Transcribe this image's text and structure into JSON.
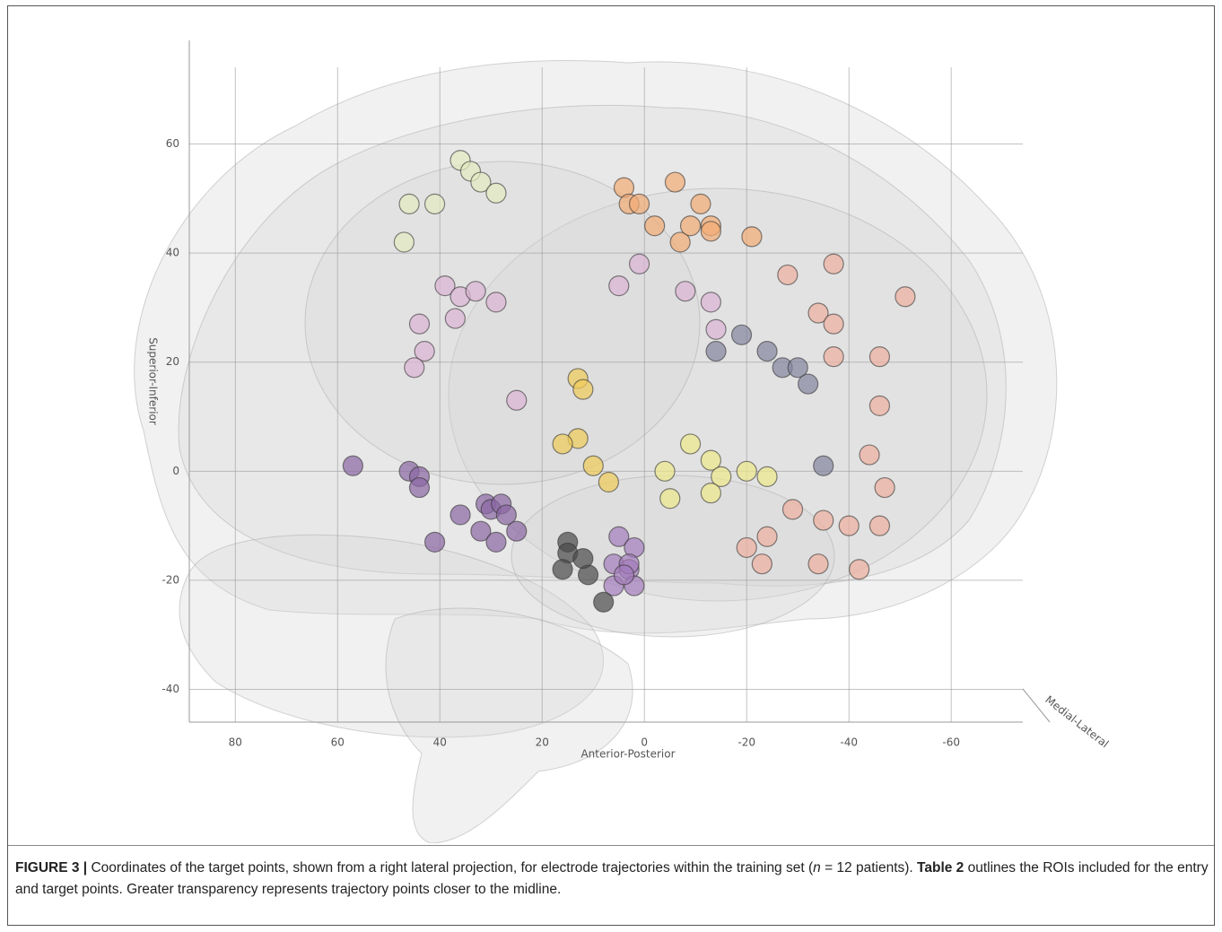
{
  "chart_data": {
    "type": "scatter",
    "xlabel": "Anterior-Posterior",
    "ylabel": "Superior-Inferior",
    "zlabel": "Medial-Lateral",
    "xlim": [
      89,
      -74
    ],
    "xticks": [
      80,
      60,
      40,
      20,
      0,
      -20,
      -40,
      -60
    ],
    "ylim": [
      -46,
      79
    ],
    "yticks": [
      60,
      40,
      20,
      0,
      -20,
      -40
    ],
    "grid": true,
    "series": [
      {
        "color": "#e4ebc0",
        "x": [
          36,
          34,
          32,
          29,
          46,
          41,
          47
        ],
        "y": [
          57,
          55,
          53,
          51,
          49,
          49,
          42
        ]
      },
      {
        "color": "#f2ab74",
        "x": [
          4,
          3,
          1,
          -6,
          -2,
          -7,
          -9,
          -11,
          -13,
          -13,
          -21
        ],
        "y": [
          52,
          49,
          49,
          53,
          45,
          42,
          45,
          49,
          45,
          44,
          43
        ]
      },
      {
        "color": "#eeaf9e",
        "x": [
          -28,
          -37,
          -51,
          -34,
          -37,
          -37,
          -46,
          -46,
          -44,
          -47,
          -46,
          -35,
          -40,
          -29,
          -34,
          -42,
          -24,
          -23,
          -20
        ],
        "y": [
          36,
          38,
          32,
          29,
          27,
          21,
          21,
          12,
          3,
          -3,
          -10,
          -9,
          -10,
          -7,
          -17,
          -18,
          -12,
          -17,
          -14
        ]
      },
      {
        "color": "#dcb4d4",
        "x": [
          1,
          5,
          -8,
          -13,
          -14,
          39,
          36,
          33,
          29,
          37,
          44,
          43,
          45,
          25
        ],
        "y": [
          38,
          34,
          33,
          31,
          26,
          34,
          32,
          33,
          31,
          28,
          27,
          22,
          19,
          13
        ]
      },
      {
        "color": "#85859f",
        "x": [
          -19,
          -14,
          -24,
          -27,
          -30,
          -32,
          -35
        ],
        "y": [
          25,
          22,
          22,
          19,
          19,
          16,
          1
        ]
      },
      {
        "color": "#f0cc58",
        "x": [
          13,
          12,
          13,
          16,
          10,
          7
        ],
        "y": [
          17,
          15,
          6,
          5,
          1,
          -2
        ]
      },
      {
        "color": "#eee88a",
        "x": [
          -9,
          -13,
          -15,
          -20,
          -24,
          -4,
          -5,
          -13
        ],
        "y": [
          5,
          2,
          -1,
          0,
          -1,
          0,
          -5,
          -4
        ]
      },
      {
        "color": "#8a66a2",
        "x": [
          57,
          46,
          44,
          44,
          41,
          36,
          31,
          30,
          28,
          27,
          32,
          29,
          25
        ],
        "y": [
          1,
          0,
          -1,
          -3,
          -13,
          -8,
          -6,
          -7,
          -6,
          -8,
          -11,
          -13,
          -11
        ]
      },
      {
        "color": "#a47cbc",
        "x": [
          5,
          2,
          6,
          3,
          3,
          6,
          2,
          4
        ],
        "y": [
          -12,
          -14,
          -17,
          -18,
          -17,
          -21,
          -21,
          -19
        ]
      },
      {
        "color": "#4a4a4a",
        "x": [
          15,
          15,
          16,
          11,
          8,
          12
        ],
        "y": [
          -13,
          -15,
          -18,
          -19,
          -24,
          -16
        ]
      }
    ]
  },
  "caption": {
    "label": "FIGURE 3 |",
    "text1": " Coordinates of the target points, shown from a right lateral projection, for electrode trajectories within the training set (",
    "italic": "n",
    "text2": " = 12 patients). ",
    "bold": "Table 2",
    "text3": " outlines the ROIs included for the entry and target points. Greater transparency represents trajectory points closer to the midline."
  }
}
